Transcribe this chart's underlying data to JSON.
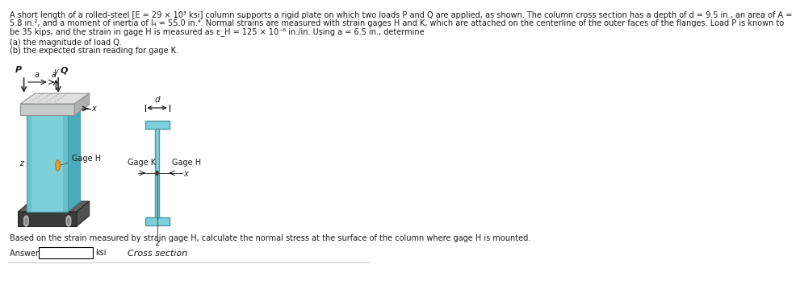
{
  "line1": "A short length of a rolled-steel [E = 29 × 10³ ksi] column supports a rigid plate on which two loads P and Q are applied, as shown. The column cross section has a depth of d = 9.5 in., an area of A =",
  "line2": "5.8 in.², and a moment of inertia of I₄ = 55.0 in.⁴. Normal strains are measured with strain gages H and K, which are attached on the centerline of the outer faces of the flanges. Load P is known to",
  "line3": "be 35 kips, and the strain in gage H is measured as ε_H = 125 × 10⁻⁶ in./in. Using a = 6.5 in., determine",
  "item_a": "(a) the magnitude of load Q.",
  "item_b": "(b) the expected strain reading for gage K.",
  "bottom_text": "Based on the strain measured by strain gage H, calculate the normal stress at the surface of the column where gage H is mounted.",
  "answer_label": "Answer: σ_H =",
  "answer_unit": "ksi",
  "bg_color": "#ffffff",
  "text_color": "#1a1a1a",
  "col_face": "#7dcfda",
  "col_right": "#4aabba",
  "col_top": "#c8d8dc",
  "col_edge": "#4a9aaa",
  "base_dark": "#3a3a3a",
  "base_edge": "#222222",
  "plate_face": "#c8caca",
  "plate_top": "#e0e0e0",
  "plate_edge": "#909090",
  "gage_color": "#e8a020",
  "cs_face": "#7dcfda",
  "cs_edge": "#4a9aaa"
}
